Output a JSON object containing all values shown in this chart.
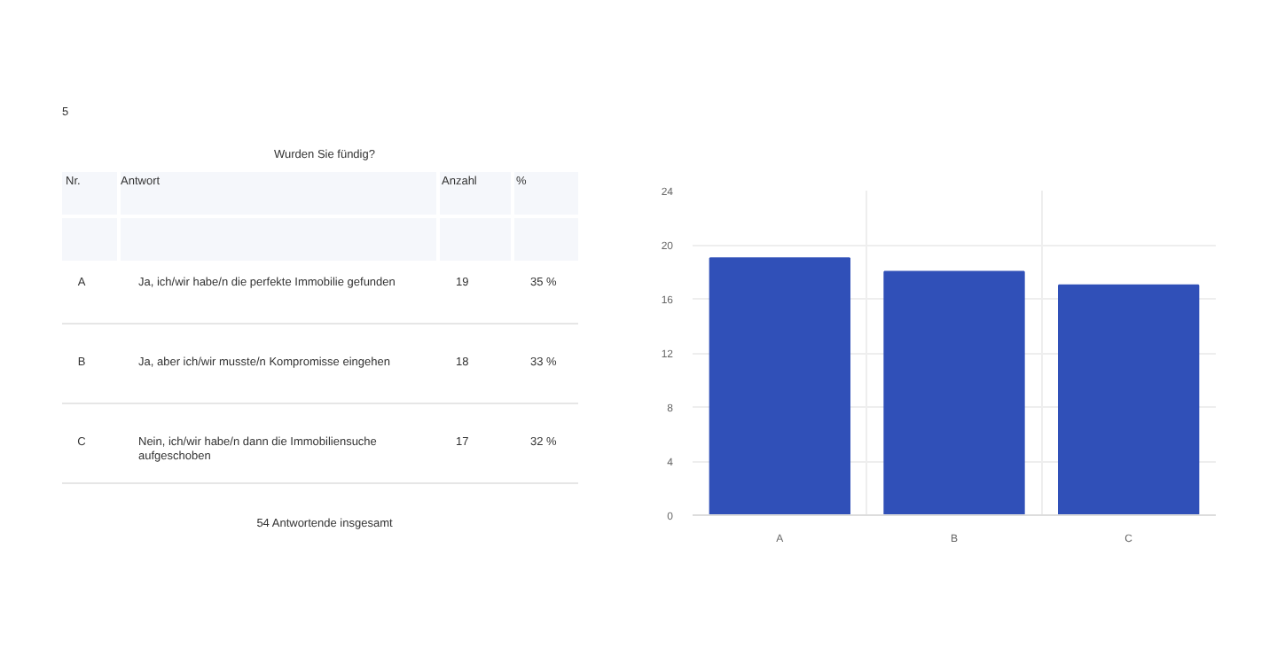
{
  "chart_data": {
    "type": "bar",
    "title": "Wurden Sie fündig?",
    "categories": [
      "A",
      "B",
      "C"
    ],
    "values": [
      19,
      18,
      17
    ],
    "color": "#3050b8",
    "ylim": [
      0,
      24
    ],
    "yticks": [
      0,
      4,
      8,
      12,
      16,
      20,
      24
    ],
    "grid": true,
    "annotations": [
      "5",
      "Nr.",
      "Antwort",
      "Anzahl",
      "%",
      "Ja, ich/wir habe/n die perfekte Immobilie gefunden",
      "Ja, aber ich/wir musste/n Kompromisse eingehen",
      "Nein, ich/wir habe/n dann die Immobiliensuche aufgeschoben",
      "35 %",
      "33 %",
      "32 %",
      "19",
      "18",
      "17",
      "54 Antwortende insgesamt"
    ]
  }
}
